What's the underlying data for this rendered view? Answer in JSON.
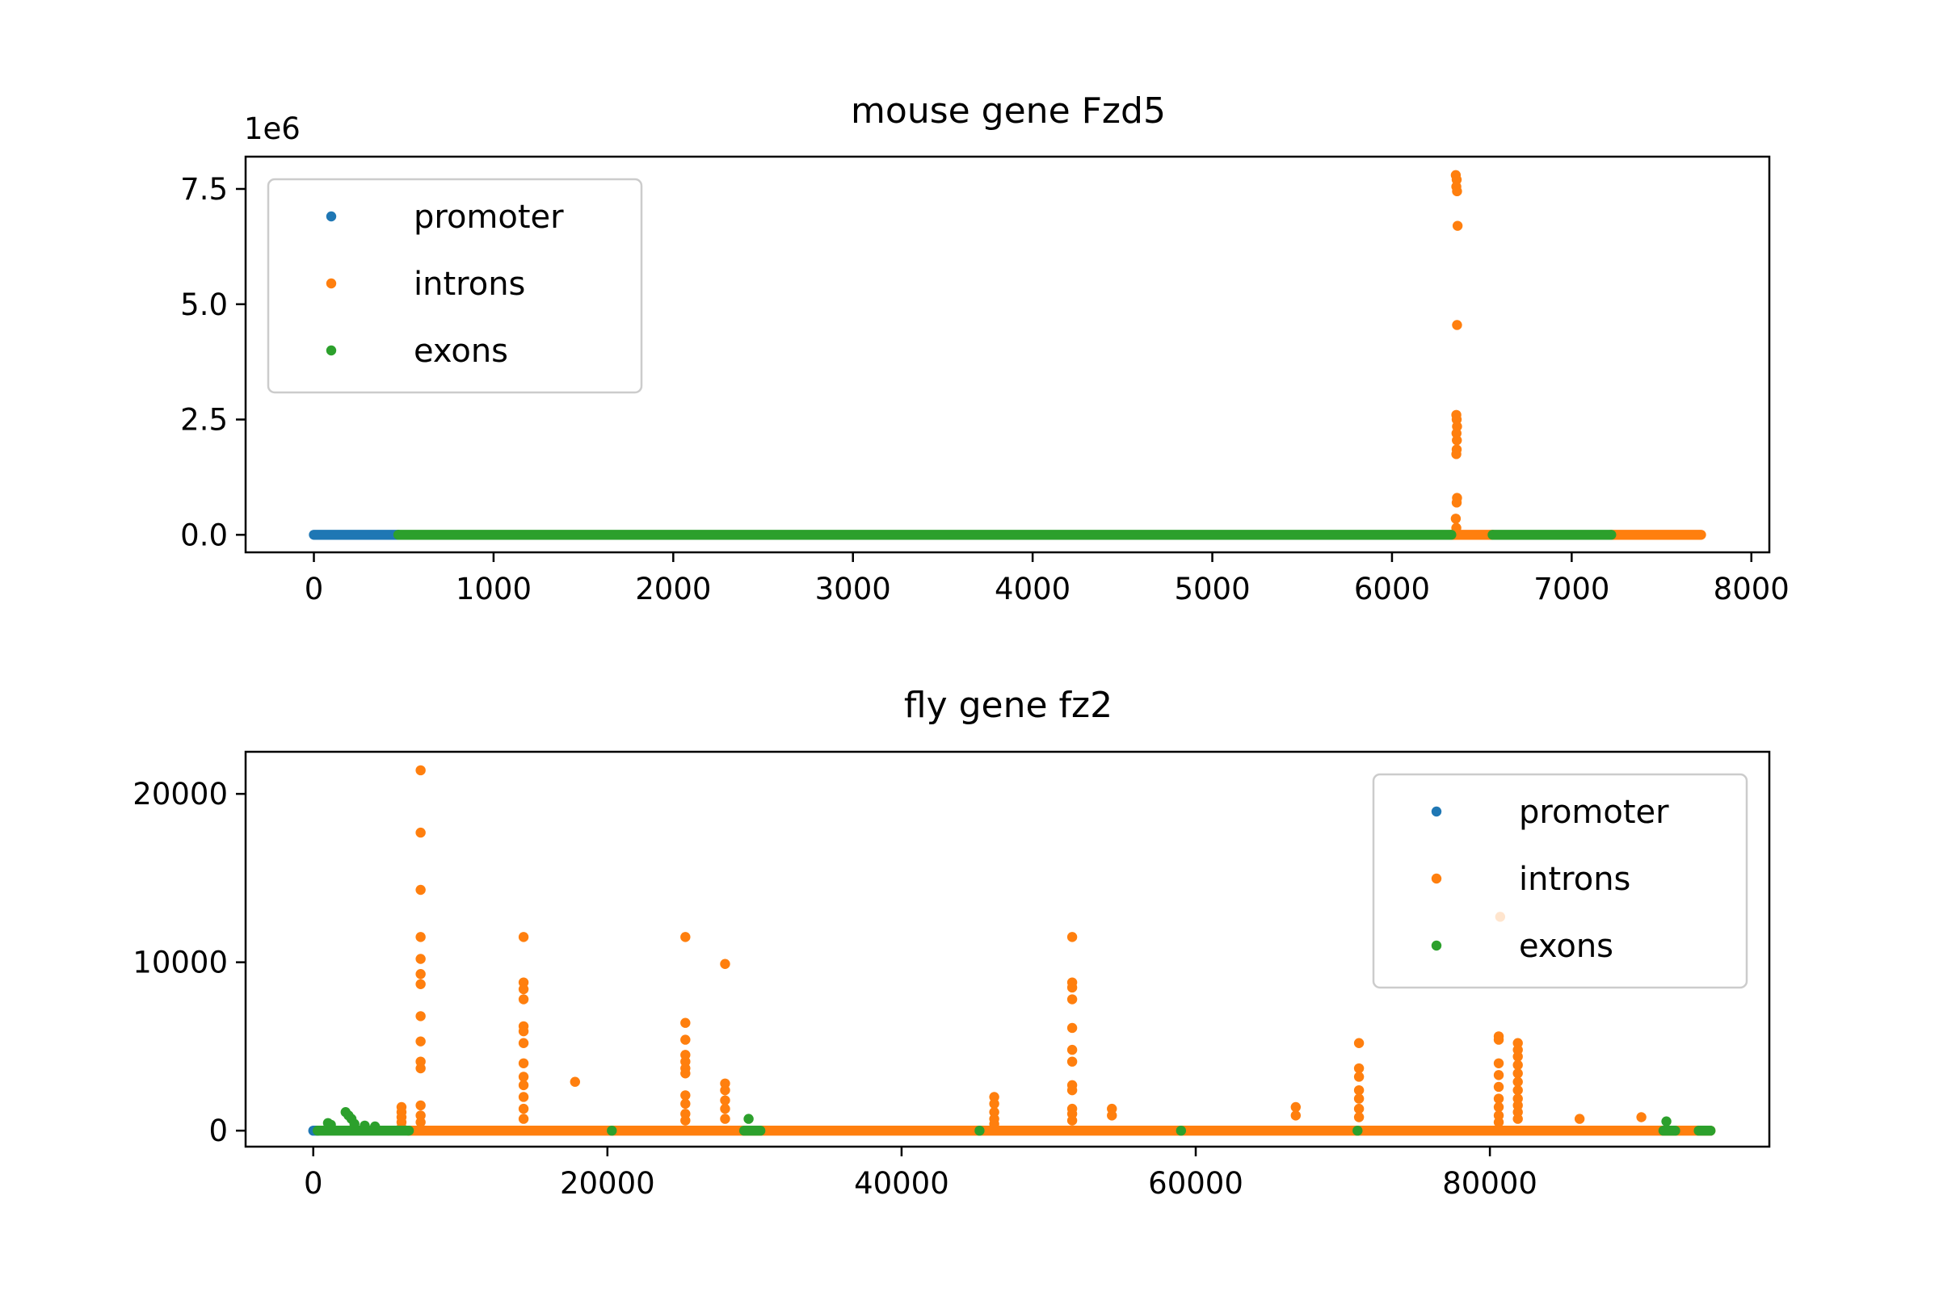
{
  "chart_data": [
    {
      "type": "scatter",
      "title": "mouse gene Fzd5",
      "xlabel": "",
      "ylabel": "",
      "y_offset_label": "1e6",
      "xlim": [
        -380,
        8100
      ],
      "ylim": [
        -380000,
        8200000
      ],
      "xticks": [
        0,
        1000,
        2000,
        3000,
        4000,
        5000,
        6000,
        7000,
        8000
      ],
      "xtick_labels": [
        "0",
        "1000",
        "2000",
        "3000",
        "4000",
        "5000",
        "6000",
        "7000",
        "8000"
      ],
      "yticks": [
        0,
        2500000,
        5000000,
        7500000
      ],
      "ytick_labels": [
        "0.0",
        "2.5",
        "5.0",
        "7.5"
      ],
      "legend_position": "upper-left",
      "grid": false,
      "series": [
        {
          "name": "promoter",
          "color": "#1f77b4",
          "segments": [
            [
              0,
              470
            ]
          ],
          "points": []
        },
        {
          "name": "introns",
          "color": "#ff7f0e",
          "segments": [
            [
              6330,
              6560
            ],
            [
              7220,
              7720
            ]
          ],
          "points": [
            [
              6355,
              7800000
            ],
            [
              6360,
              7700000
            ],
            [
              6358,
              7550000
            ],
            [
              6362,
              7450000
            ],
            [
              6365,
              6700000
            ],
            [
              6362,
              4550000
            ],
            [
              6358,
              2600000
            ],
            [
              6360,
              2500000
            ],
            [
              6362,
              2350000
            ],
            [
              6359,
              2200000
            ],
            [
              6361,
              2050000
            ],
            [
              6360,
              1850000
            ],
            [
              6358,
              1750000
            ],
            [
              6362,
              800000
            ],
            [
              6360,
              700000
            ],
            [
              6355,
              350000
            ],
            [
              6358,
              150000
            ]
          ]
        },
        {
          "name": "exons",
          "color": "#2ca02c",
          "segments": [
            [
              470,
              6330
            ],
            [
              6560,
              7220
            ]
          ],
          "points": []
        }
      ]
    },
    {
      "type": "scatter",
      "title": "fly gene fz2",
      "xlabel": "",
      "ylabel": "",
      "xlim": [
        -4600,
        99000
      ],
      "ylim": [
        -950,
        22500
      ],
      "xticks": [
        0,
        20000,
        40000,
        60000,
        80000
      ],
      "xtick_labels": [
        "0",
        "20000",
        "40000",
        "60000",
        "80000"
      ],
      "yticks": [
        0,
        10000,
        20000
      ],
      "ytick_labels": [
        "0",
        "10000",
        "20000"
      ],
      "legend_position": "upper-right",
      "grid": false,
      "series": [
        {
          "name": "promoter",
          "color": "#1f77b4",
          "segments": [
            [
              0,
              300
            ]
          ],
          "points": []
        },
        {
          "name": "introns",
          "color": "#ff7f0e",
          "segments": [
            [
              6500,
              95000
            ]
          ],
          "spikes": [
            {
              "x": 6000,
              "values": [
                200,
                500,
                800,
                1100,
                1400
              ]
            },
            {
              "x": 7300,
              "values": [
                21400,
                17700,
                14300,
                11500,
                10200,
                9300,
                8700,
                6800,
                5300,
                4100,
                3700,
                1500,
                900,
                500
              ]
            },
            {
              "x": 14300,
              "values": [
                11500,
                8800,
                8400,
                7800,
                6200,
                5900,
                5200,
                4000,
                3200,
                2700,
                2000,
                1300,
                700
              ]
            },
            {
              "x": 17800,
              "values": [
                2900
              ]
            },
            {
              "x": 25300,
              "values": [
                11500,
                6400,
                5400,
                4500,
                4100,
                3700,
                3400,
                2100,
                1600,
                1000,
                600
              ]
            },
            {
              "x": 28000,
              "values": [
                9900,
                2800,
                2400,
                1800,
                1300,
                700
              ]
            },
            {
              "x": 46300,
              "values": [
                2000,
                1600,
                1100,
                700,
                400
              ]
            },
            {
              "x": 51600,
              "values": [
                11500,
                8800,
                8500,
                7800,
                6100,
                4800,
                4100,
                2700,
                2400,
                1300,
                1000,
                600
              ]
            },
            {
              "x": 54300,
              "values": [
                1300,
                900
              ]
            },
            {
              "x": 66800,
              "values": [
                1400,
                900
              ]
            },
            {
              "x": 71100,
              "values": [
                5200,
                3700,
                3200,
                2400,
                1900,
                1300,
                800
              ]
            },
            {
              "x": 80600,
              "values": [
                5600,
                5400,
                4000,
                3300,
                2600,
                1900,
                1400,
                900,
                500
              ]
            },
            {
              "x": 81900,
              "values": [
                5200,
                4800,
                4400,
                3900,
                3400,
                2900,
                2400,
                1900,
                1500,
                1100,
                700
              ]
            },
            {
              "x": 86100,
              "values": [
                700
              ]
            },
            {
              "x": 90300,
              "values": [
                800
              ]
            }
          ],
          "points": [
            [
              80700,
              12700
            ]
          ]
        },
        {
          "name": "exons",
          "color": "#2ca02c",
          "segments": [
            [
              300,
              6500
            ],
            [
              29300,
              30400
            ],
            [
              91800,
              92600
            ],
            [
              94200,
              95000
            ]
          ],
          "points": [
            [
              1000,
              450
            ],
            [
              1200,
              350
            ],
            [
              2200,
              1100
            ],
            [
              2400,
              900
            ],
            [
              2600,
              700
            ],
            [
              2800,
              400
            ],
            [
              3500,
              300
            ],
            [
              4200,
              250
            ],
            [
              20300,
              0
            ],
            [
              29600,
              700
            ],
            [
              45300,
              0
            ],
            [
              59000,
              0
            ],
            [
              71000,
              0
            ],
            [
              92000,
              550
            ]
          ]
        }
      ]
    }
  ]
}
